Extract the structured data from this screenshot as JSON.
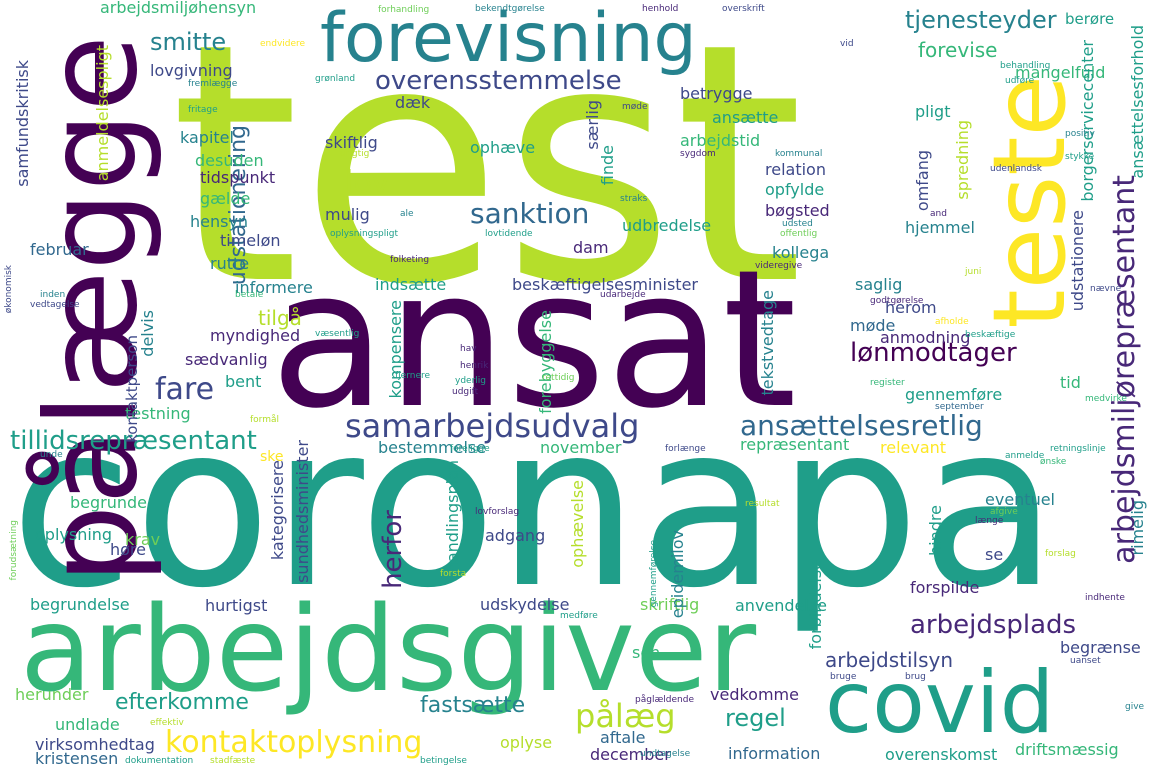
{
  "palette": {
    "dark_purple": "#440154",
    "indigo": "#482878",
    "slate_blue": "#3e4989",
    "steel_blue": "#31688e",
    "teal_blue": "#26828e",
    "teal": "#1f9e89",
    "green_teal": "#35b779",
    "green": "#6ece58",
    "lime": "#b5de2b",
    "yellow": "#fde725"
  },
  "words": [
    {
      "text": "test",
      "color": "lime",
      "rotate": false
    },
    {
      "text": "coronapa",
      "color": "teal",
      "rotate": false
    },
    {
      "text": "ansat",
      "color": "dark_purple",
      "rotate": false
    },
    {
      "text": "arbejdsgiver",
      "color": "green_teal",
      "rotate": false
    },
    {
      "text": "forevisning",
      "color": "teal_blue",
      "rotate": false
    },
    {
      "text": "pålægge",
      "color": "dark_purple",
      "rotate": true
    },
    {
      "text": "teste",
      "color": "yellow",
      "rotate": true
    },
    {
      "text": "covid",
      "color": "teal",
      "rotate": false
    },
    {
      "text": "samarbejdsudvalg",
      "color": "slate_blue",
      "rotate": false
    },
    {
      "text": "kontaktoplysning",
      "color": "yellow",
      "rotate": false
    },
    {
      "text": "ansættelsesretlig",
      "color": "steel_blue",
      "rotate": false
    },
    {
      "text": "arbejdsmiljørepræsentant",
      "color": "indigo",
      "rotate": true
    },
    {
      "text": "overensstemmelse",
      "color": "slate_blue",
      "rotate": false
    },
    {
      "text": "sanktion",
      "color": "steel_blue",
      "rotate": false
    },
    {
      "text": "lønmodtager",
      "color": "dark_purple",
      "rotate": false
    },
    {
      "text": "tillidsrepræsentant",
      "color": "teal",
      "rotate": false
    },
    {
      "text": "arbejdsplads",
      "color": "indigo",
      "rotate": false
    },
    {
      "text": "udstationering",
      "color": "steel_blue",
      "rotate": true
    },
    {
      "text": "tjenesteyder",
      "color": "teal_blue",
      "rotate": false
    },
    {
      "text": "smitte",
      "color": "teal_blue",
      "rotate": false
    },
    {
      "text": "lov",
      "color": "lime",
      "rotate": false
    },
    {
      "text": "fare",
      "color": "slate_blue",
      "rotate": false
    },
    {
      "text": "pålæg",
      "color": "lime",
      "rotate": false
    },
    {
      "text": "efterkomme",
      "color": "teal",
      "rotate": false
    },
    {
      "text": "fastsætte",
      "color": "teal_blue",
      "rotate": false
    },
    {
      "text": "regel",
      "color": "teal",
      "rotate": false
    },
    {
      "text": "herfor",
      "color": "indigo",
      "rotate": true
    },
    {
      "text": "forevise",
      "color": "green_teal",
      "rotate": false
    },
    {
      "text": "arbejdstilsyn",
      "color": "slate_blue",
      "rotate": false
    },
    {
      "text": "tilgå",
      "color": "lime",
      "rotate": false
    },
    {
      "text": "udbredelse",
      "color": "teal",
      "rotate": false
    },
    {
      "text": "bøgsted",
      "color": "indigo",
      "rotate": false
    },
    {
      "text": "hjemmel",
      "color": "teal_blue",
      "rotate": false
    },
    {
      "text": "kollega",
      "color": "teal_blue",
      "rotate": false
    },
    {
      "text": "opfylde",
      "color": "teal",
      "rotate": false
    },
    {
      "text": "relation",
      "color": "slate_blue",
      "rotate": false
    },
    {
      "text": "arbejdstid",
      "color": "green_teal",
      "rotate": false
    },
    {
      "text": "ophæve",
      "color": "teal",
      "rotate": false
    },
    {
      "text": "skiftlig",
      "color": "slate_blue",
      "rotate": false
    },
    {
      "text": "mulig",
      "color": "slate_blue",
      "rotate": false
    },
    {
      "text": "informere",
      "color": "teal_blue",
      "rotate": false
    },
    {
      "text": "indsætte",
      "color": "teal",
      "rotate": false
    },
    {
      "text": "beskæftigelsesminister",
      "color": "slate_blue",
      "rotate": false
    },
    {
      "text": "saglig",
      "color": "teal_blue",
      "rotate": false
    },
    {
      "text": "herom",
      "color": "slate_blue",
      "rotate": false
    },
    {
      "text": "møde",
      "color": "steel_blue",
      "rotate": false
    },
    {
      "text": "anmodning",
      "color": "indigo",
      "rotate": false
    },
    {
      "text": "gennemføre",
      "color": "teal",
      "rotate": false
    },
    {
      "text": "tid",
      "color": "green_teal",
      "rotate": false
    },
    {
      "text": "repræsentant",
      "color": "green_teal",
      "rotate": false
    },
    {
      "text": "relevant",
      "color": "yellow",
      "rotate": false
    },
    {
      "text": "bestemmelse",
      "color": "teal_blue",
      "rotate": false
    },
    {
      "text": "november",
      "color": "green_teal",
      "rotate": false
    },
    {
      "text": "eventuel",
      "color": "teal_blue",
      "rotate": false
    },
    {
      "text": "adgang",
      "color": "slate_blue",
      "rotate": false
    },
    {
      "text": "oplysning",
      "color": "teal",
      "rotate": false
    },
    {
      "text": "begrunde",
      "color": "green_teal",
      "rotate": false
    },
    {
      "text": "krav",
      "color": "green",
      "rotate": false
    },
    {
      "text": "høre",
      "color": "slate_blue",
      "rotate": false
    },
    {
      "text": "begrundelse",
      "color": "teal",
      "rotate": false
    },
    {
      "text": "hurtigst",
      "color": "slate_blue",
      "rotate": false
    },
    {
      "text": "udskydelse",
      "color": "slate_blue",
      "rotate": false
    },
    {
      "text": "skriftlig",
      "color": "green",
      "rotate": false
    },
    {
      "text": "anvendelse",
      "color": "teal",
      "rotate": false
    },
    {
      "text": "forspilde",
      "color": "indigo",
      "rotate": false
    },
    {
      "text": "se",
      "color": "slate_blue",
      "rotate": false
    },
    {
      "text": "begrænse",
      "color": "slate_blue",
      "rotate": false
    },
    {
      "text": "vedkomme",
      "color": "indigo",
      "rotate": false
    },
    {
      "text": "information",
      "color": "steel_blue",
      "rotate": false
    },
    {
      "text": "overenskomst",
      "color": "teal",
      "rotate": false
    },
    {
      "text": "driftsmæssig",
      "color": "green_teal",
      "rotate": false
    },
    {
      "text": "december",
      "color": "indigo",
      "rotate": false
    },
    {
      "text": "aftale",
      "color": "steel_blue",
      "rotate": false
    },
    {
      "text": "oplyse",
      "color": "lime",
      "rotate": false
    },
    {
      "text": "virksomhedtag",
      "color": "slate_blue",
      "rotate": false
    },
    {
      "text": "kristensen",
      "color": "steel_blue",
      "rotate": false
    },
    {
      "text": "undlade",
      "color": "green_teal",
      "rotate": false
    },
    {
      "text": "herunder",
      "color": "green",
      "rotate": false
    },
    {
      "text": "sen",
      "color": "green_teal",
      "rotate": false
    },
    {
      "text": "testning",
      "color": "green_teal",
      "rotate": false
    },
    {
      "text": "bent",
      "color": "teal",
      "rotate": false
    },
    {
      "text": "sædvanlig",
      "color": "indigo",
      "rotate": false
    },
    {
      "text": "myndighed",
      "color": "indigo",
      "rotate": false
    },
    {
      "text": "rutte",
      "color": "teal_blue",
      "rotate": false
    },
    {
      "text": "timeløn",
      "color": "slate_blue",
      "rotate": false
    },
    {
      "text": "hensyn",
      "color": "teal_blue",
      "rotate": false
    },
    {
      "text": "gælde",
      "color": "green_teal",
      "rotate": false
    },
    {
      "text": "tidspunkt",
      "color": "indigo",
      "rotate": false
    },
    {
      "text": "desuden",
      "color": "green_teal",
      "rotate": false
    },
    {
      "text": "kapitel",
      "color": "teal_blue",
      "rotate": false
    },
    {
      "text": "dæk",
      "color": "slate_blue",
      "rotate": false
    },
    {
      "text": "lovgivning",
      "color": "slate_blue",
      "rotate": false
    },
    {
      "text": "arbejdsmiljøhensyn",
      "color": "green_teal",
      "rotate": false
    },
    {
      "text": "februar",
      "color": "steel_blue",
      "rotate": false
    },
    {
      "text": "kontaktperson",
      "color": "slate_blue",
      "rotate": true
    },
    {
      "text": "ansætte",
      "color": "teal",
      "rotate": false
    },
    {
      "text": "pligt",
      "color": "teal",
      "rotate": false
    },
    {
      "text": "betrygge",
      "color": "slate_blue",
      "rotate": false
    },
    {
      "text": "mangelfuld",
      "color": "green_teal",
      "rotate": false
    },
    {
      "text": "berøre",
      "color": "teal",
      "rotate": false
    },
    {
      "text": "ske",
      "color": "yellow",
      "rotate": false
    },
    {
      "text": "dam",
      "color": "indigo",
      "rotate": false
    },
    {
      "text": "finde",
      "color": "teal",
      "rotate": true
    },
    {
      "text": "særlig",
      "color": "slate_blue",
      "rotate": true
    },
    {
      "text": "omfang",
      "color": "slate_blue",
      "rotate": true
    },
    {
      "text": "spredning",
      "color": "lime",
      "rotate": true
    },
    {
      "text": "udstationere",
      "color": "slate_blue",
      "rotate": true
    },
    {
      "text": "borgerservicecenter",
      "color": "teal",
      "rotate": true
    },
    {
      "text": "ansættelsesforhold",
      "color": "teal",
      "rotate": true
    },
    {
      "text": "samfundskritisk",
      "color": "slate_blue",
      "rotate": true
    },
    {
      "text": "anmeldelsespligt",
      "color": "lime",
      "rotate": true
    },
    {
      "text": "delvis",
      "color": "teal_blue",
      "rotate": true
    },
    {
      "text": "kompensere",
      "color": "teal",
      "rotate": true
    },
    {
      "text": "sundhedsminister",
      "color": "slate_blue",
      "rotate": true
    },
    {
      "text": "forebyggelse",
      "color": "green_teal",
      "rotate": true
    },
    {
      "text": "tekstvedtagе",
      "color": "teal_blue",
      "rotate": true
    },
    {
      "text": "kategorisere",
      "color": "slate_blue",
      "rotate": true
    },
    {
      "text": "handlingsplan",
      "color": "teal",
      "rotate": true
    },
    {
      "text": "ophævelse",
      "color": "lime",
      "rotate": true
    },
    {
      "text": "epidemilov",
      "color": "teal_blue",
      "rotate": true
    },
    {
      "text": "forbindelse",
      "color": "teal",
      "rotate": true
    },
    {
      "text": "hindre",
      "color": "teal",
      "rotate": true
    },
    {
      "text": "rimelig",
      "color": "teal_blue",
      "rotate": true
    },
    {
      "text": "forhandling",
      "color": "green",
      "rotate": false
    },
    {
      "text": "bekendtgørelse",
      "color": "teal_blue",
      "rotate": false
    },
    {
      "text": "henhold",
      "color": "indigo",
      "rotate": false
    },
    {
      "text": "overskrift",
      "color": "slate_blue",
      "rotate": false
    },
    {
      "text": "endvidere",
      "color": "yellow",
      "rotate": false
    },
    {
      "text": "vid",
      "color": "slate_blue",
      "rotate": false
    },
    {
      "text": "behandling",
      "color": "teal",
      "rotate": false
    },
    {
      "text": "udføre",
      "color": "teal",
      "rotate": false
    },
    {
      "text": "fremlægge",
      "color": "teal_blue",
      "rotate": false
    },
    {
      "text": "grønland",
      "color": "teal",
      "rotate": false
    },
    {
      "text": "fritage",
      "color": "teal",
      "rotate": false
    },
    {
      "text": "urigtig",
      "color": "lime",
      "rotate": false
    },
    {
      "text": "møde",
      "color": "slate_blue",
      "rotate": false
    },
    {
      "text": "sygdom",
      "color": "indigo",
      "rotate": false
    },
    {
      "text": "kommunal",
      "color": "teal_blue",
      "rotate": false
    },
    {
      "text": "positiv",
      "color": "teal_blue",
      "rotate": false
    },
    {
      "text": "stykke",
      "color": "teal",
      "rotate": false
    },
    {
      "text": "udenlandsk",
      "color": "slate_blue",
      "rotate": false
    },
    {
      "text": "straks",
      "color": "teal_blue",
      "rotate": false
    },
    {
      "text": "ale",
      "color": "teal_blue",
      "rotate": false
    },
    {
      "text": "and",
      "color": "indigo",
      "rotate": false
    },
    {
      "text": "udsted",
      "color": "teal_blue",
      "rotate": false
    },
    {
      "text": "offentlig",
      "color": "green",
      "rotate": false
    },
    {
      "text": "oplysningspligt",
      "color": "teal",
      "rotate": false
    },
    {
      "text": "lovtidende",
      "color": "teal",
      "rotate": false
    },
    {
      "text": "folketing",
      "color": "indigo",
      "rotate": false
    },
    {
      "text": "videregive",
      "color": "indigo",
      "rotate": false
    },
    {
      "text": "juni",
      "color": "lime",
      "rotate": false
    },
    {
      "text": "økonomisk",
      "color": "slate_blue",
      "rotate": true
    },
    {
      "text": "inden",
      "color": "teal_blue",
      "rotate": false
    },
    {
      "text": "vedtagelse",
      "color": "slate_blue",
      "rotate": false
    },
    {
      "text": "betale",
      "color": "green_teal",
      "rotate": false
    },
    {
      "text": "udarbejde",
      "color": "indigo",
      "rotate": false
    },
    {
      "text": "godtgørelse",
      "color": "indigo",
      "rotate": false
    },
    {
      "text": "nævne",
      "color": "slate_blue",
      "rotate": false
    },
    {
      "text": "væsentlig",
      "color": "teal",
      "rotate": false
    },
    {
      "text": "afholde",
      "color": "yellow",
      "rotate": false
    },
    {
      "text": "beskæftige",
      "color": "teal",
      "rotate": false
    },
    {
      "text": "hav",
      "color": "indigo",
      "rotate": false
    },
    {
      "text": "henrik",
      "color": "indigo",
      "rotate": false
    },
    {
      "text": "yderlig",
      "color": "teal",
      "rotate": false
    },
    {
      "text": "udgift",
      "color": "indigo",
      "rotate": false
    },
    {
      "text": "rettidig",
      "color": "green",
      "rotate": false
    },
    {
      "text": "fjernere",
      "color": "teal",
      "rotate": false
    },
    {
      "text": "register",
      "color": "green_teal",
      "rotate": false
    },
    {
      "text": "medvirke",
      "color": "green_teal",
      "rotate": false
    },
    {
      "text": "september",
      "color": "steel_blue",
      "rotate": false
    },
    {
      "text": "formål",
      "color": "lime",
      "rotate": false
    },
    {
      "text": "unde",
      "color": "teal_blue",
      "rotate": false
    },
    {
      "text": "foreligge",
      "color": "teal",
      "rotate": false
    },
    {
      "text": "forlænge",
      "color": "slate_blue",
      "rotate": false
    },
    {
      "text": "anmelde",
      "color": "teal",
      "rotate": false
    },
    {
      "text": "retningslinje",
      "color": "teal",
      "rotate": false
    },
    {
      "text": "ønske",
      "color": "green_teal",
      "rotate": false
    },
    {
      "text": "lovforslag",
      "color": "indigo",
      "rotate": false
    },
    {
      "text": "resultat",
      "color": "lime",
      "rotate": false
    },
    {
      "text": "afgive",
      "color": "green",
      "rotate": false
    },
    {
      "text": "længe",
      "color": "indigo",
      "rotate": false
    },
    {
      "text": "forsta",
      "color": "lime",
      "rotate": false
    },
    {
      "text": "forslag",
      "color": "lime",
      "rotate": false
    },
    {
      "text": "forudsætning",
      "color": "green",
      "rotate": true
    },
    {
      "text": "indhente",
      "color": "indigo",
      "rotate": false
    },
    {
      "text": "medføre",
      "color": "teal",
      "rotate": false
    },
    {
      "text": "uanset",
      "color": "slate_blue",
      "rotate": false
    },
    {
      "text": "bruge",
      "color": "slate_blue",
      "rotate": false
    },
    {
      "text": "brug",
      "color": "slate_blue",
      "rotate": false
    },
    {
      "text": "påglældende",
      "color": "indigo",
      "rotate": false
    },
    {
      "text": "give",
      "color": "teal_blue",
      "rotate": false
    },
    {
      "text": "effektiv",
      "color": "lime",
      "rotate": false
    },
    {
      "text": "dokumentation",
      "color": "teal",
      "rotate": false
    },
    {
      "text": "stadfæste",
      "color": "lime",
      "rotate": false
    },
    {
      "text": "betingelse",
      "color": "teal",
      "rotate": false
    },
    {
      "text": "undtagelse",
      "color": "teal_blue",
      "rotate": false
    },
    {
      "text": "gennemførelse",
      "color": "teal",
      "rotate": true
    }
  ]
}
